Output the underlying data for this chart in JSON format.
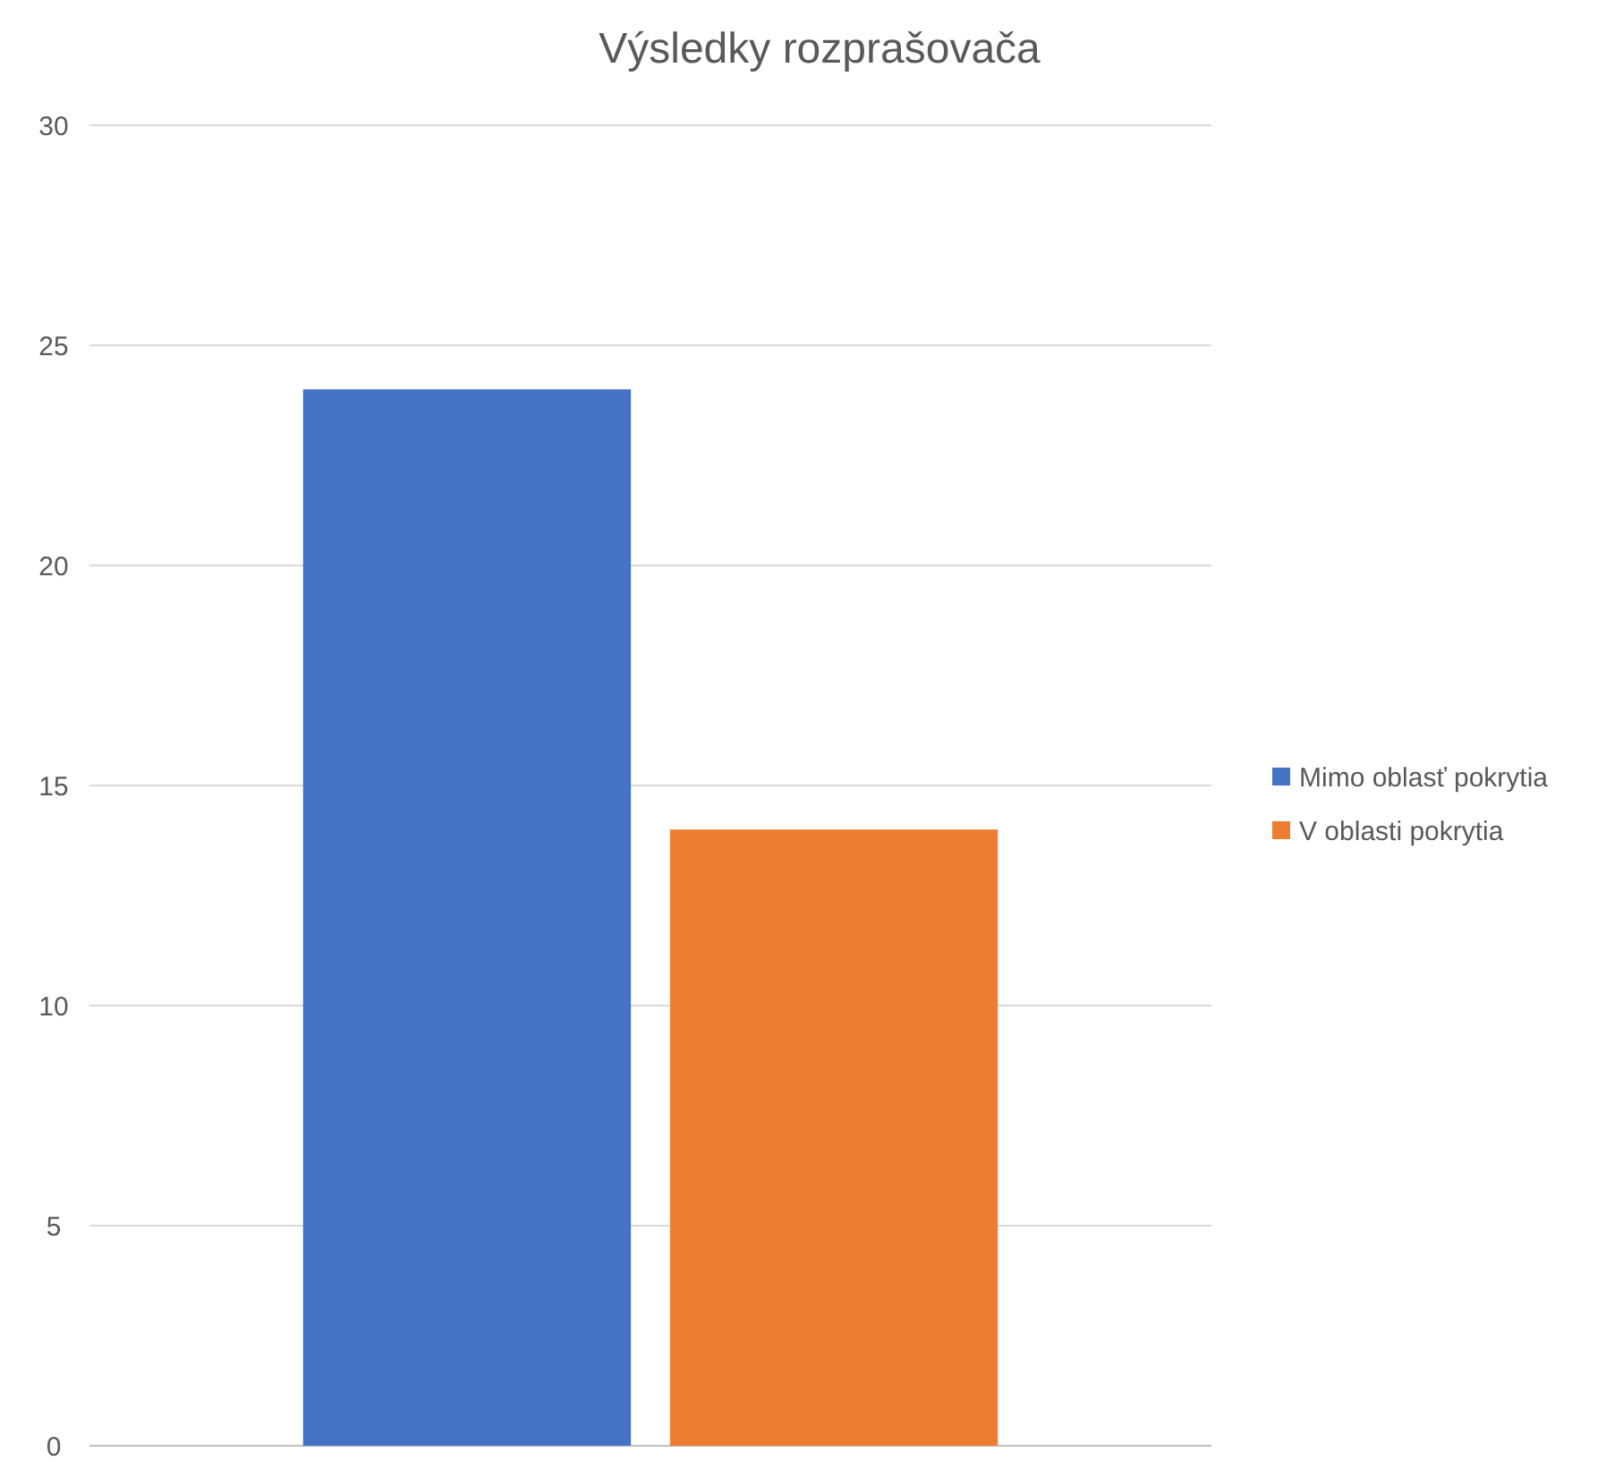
{
  "chart_data": {
    "type": "bar",
    "title": "Výsledky rozprašovača",
    "categories": [
      null
    ],
    "series": [
      {
        "name": "Mimo oblasť pokrytia",
        "color": "#4472c4",
        "values": [
          24
        ]
      },
      {
        "name": "V oblasti pokrytia",
        "color": "#ed7d31",
        "values": [
          14
        ]
      }
    ],
    "ylim": [
      0,
      30
    ],
    "yticks": [
      0,
      5,
      10,
      15,
      20,
      25,
      30
    ],
    "grid": "y",
    "legend": "right"
  }
}
